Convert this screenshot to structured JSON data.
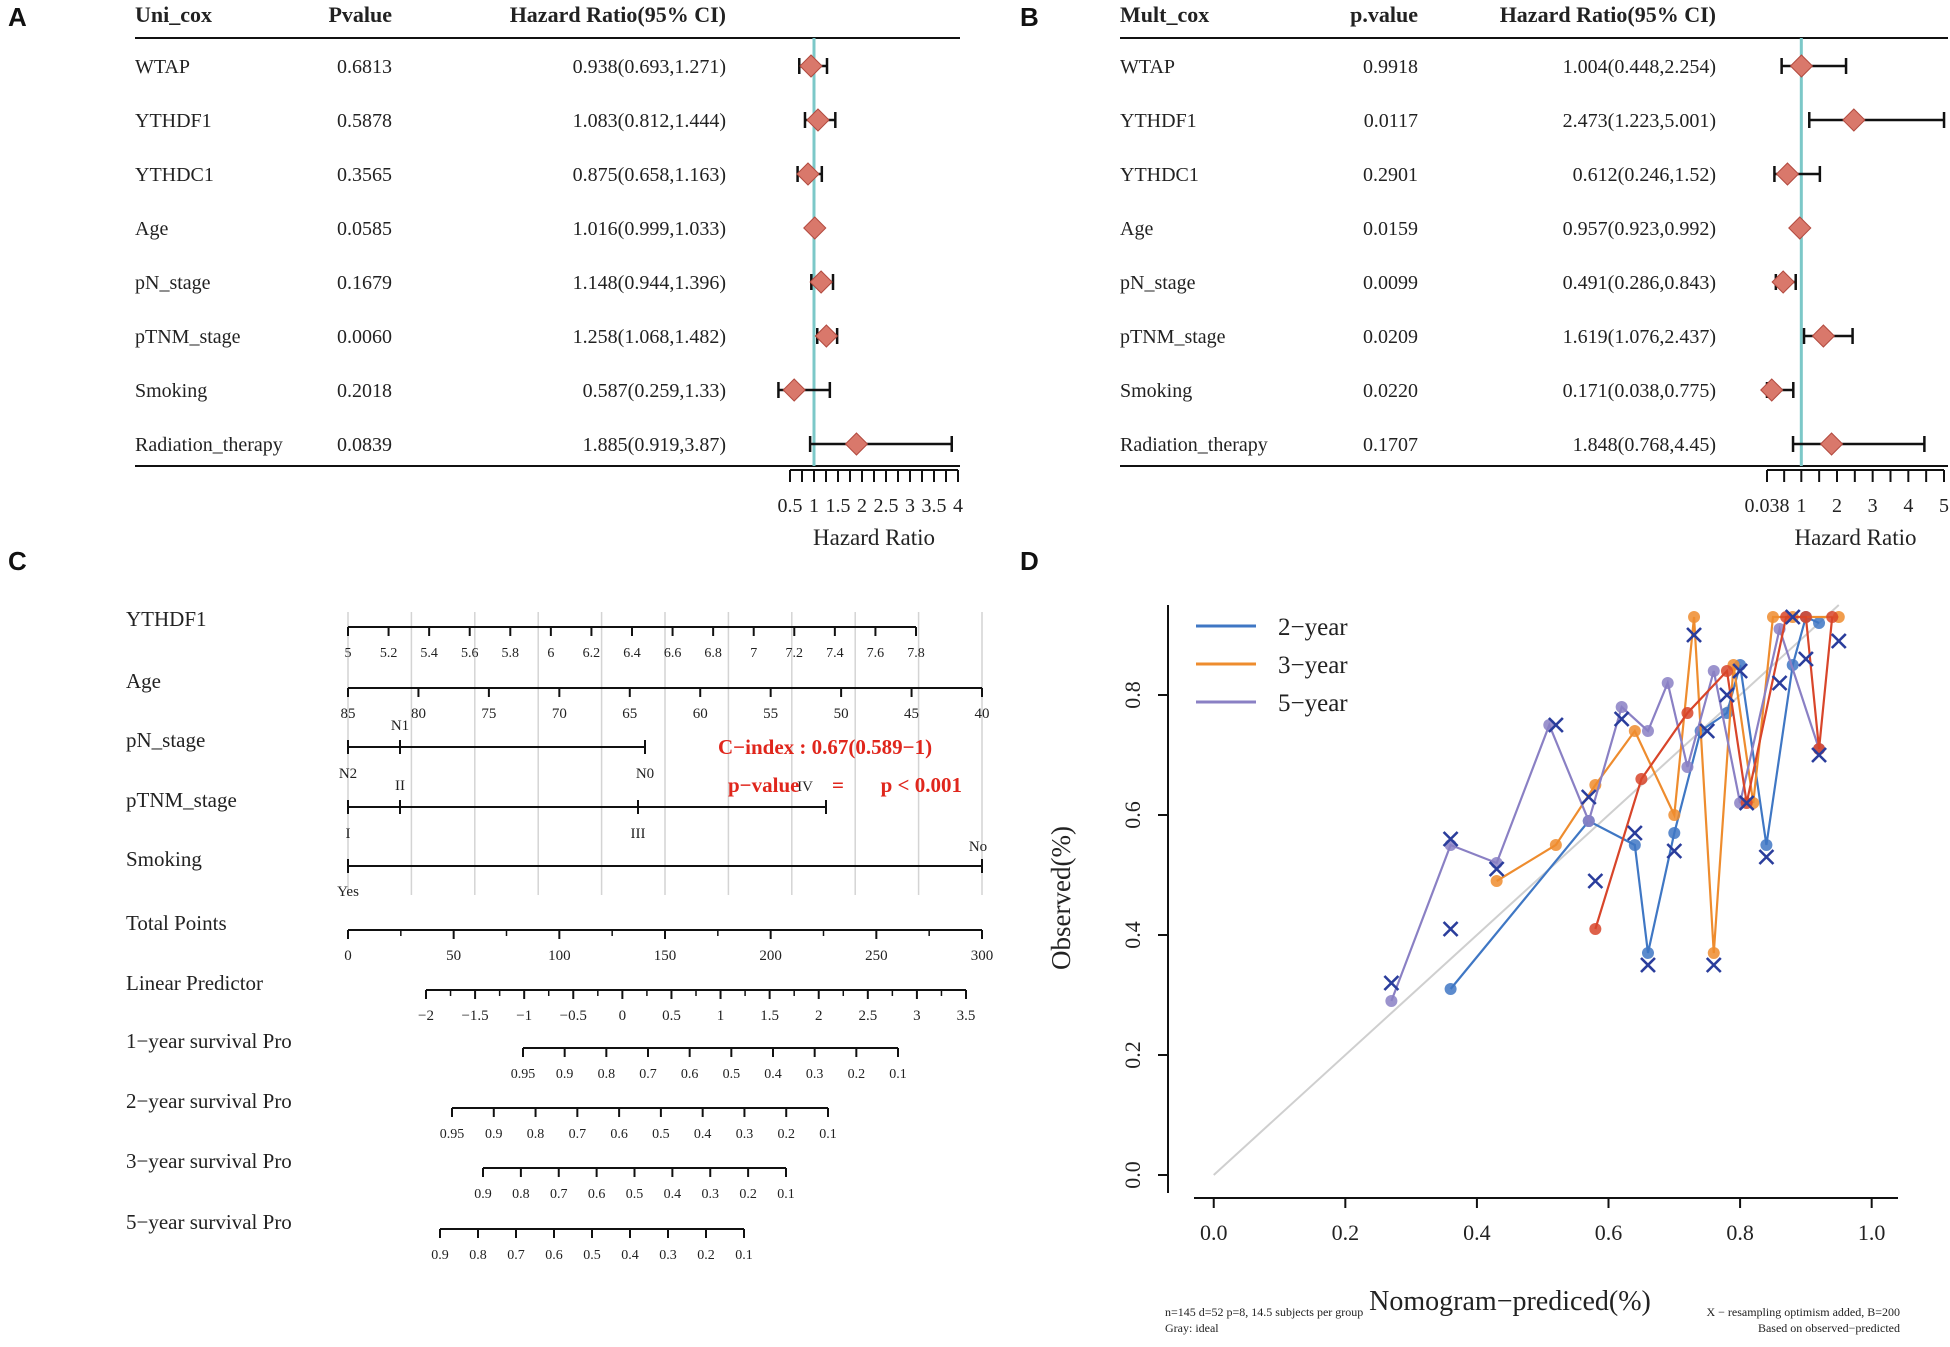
{
  "panels": {
    "A": "A",
    "B": "B",
    "C": "C",
    "D": "D"
  },
  "colors": {
    "refline": "#7cc8c8",
    "diamond": "#d9786b",
    "diamond_stroke": "#b24a3f",
    "cindex": "#e0261c",
    "s2": "#3f77c4",
    "s3": "#ee8c2e",
    "s5": "#8a80c4",
    "cross": "#2a3d9c"
  },
  "forest": [
    {
      "id": "A",
      "headers": {
        "name": "Uni_cox",
        "p": "Pvalue",
        "hr": "Hazard Ratio(95% CI)"
      },
      "rows": [
        {
          "name": "WTAP",
          "p": "0.6813",
          "hr": "0.938(0.693,1.271)",
          "est": 0.938,
          "lo": 0.693,
          "hi": 1.271
        },
        {
          "name": "YTHDF1",
          "p": "0.5878",
          "hr": "1.083(0.812,1.444)",
          "est": 1.083,
          "lo": 0.812,
          "hi": 1.444
        },
        {
          "name": "YTHDC1",
          "p": "0.3565",
          "hr": "0.875(0.658,1.163)",
          "est": 0.875,
          "lo": 0.658,
          "hi": 1.163
        },
        {
          "name": "Age",
          "p": "0.0585",
          "hr": "1.016(0.999,1.033)",
          "est": 1.016,
          "lo": 0.999,
          "hi": 1.033
        },
        {
          "name": "pN_stage",
          "p": "0.1679",
          "hr": "1.148(0.944,1.396)",
          "est": 1.148,
          "lo": 0.944,
          "hi": 1.396
        },
        {
          "name": "pTNM_stage",
          "p": "0.0060",
          "hr": "1.258(1.068,1.482)",
          "est": 1.258,
          "lo": 1.068,
          "hi": 1.482
        },
        {
          "name": "Smoking",
          "p": "0.2018",
          "hr": "0.587(0.259,1.33)",
          "est": 0.587,
          "lo": 0.259,
          "hi": 1.33
        },
        {
          "name": "Radiation_therapy",
          "p": "0.0839",
          "hr": "1.885(0.919,3.87)",
          "est": 1.885,
          "lo": 0.919,
          "hi": 3.87
        }
      ],
      "axis": {
        "ticks": [
          0.5,
          1,
          1.5,
          2,
          2.5,
          3,
          3.5,
          4
        ],
        "tick_labels": [
          "0.5",
          "1",
          "1.5",
          "2",
          "2.5",
          "3",
          "3.5",
          "4"
        ],
        "label": "Hazard Ratio"
      }
    },
    {
      "id": "B",
      "headers": {
        "name": "Mult_cox",
        "p": "p.value",
        "hr": "Hazard Ratio(95% CI)"
      },
      "rows": [
        {
          "name": "WTAP",
          "p": "0.9918",
          "hr": "1.004(0.448,2.254)",
          "est": 1.004,
          "lo": 0.448,
          "hi": 2.254
        },
        {
          "name": "YTHDF1",
          "p": "0.0117",
          "hr": "2.473(1.223,5.001)",
          "est": 2.473,
          "lo": 1.223,
          "hi": 5.001
        },
        {
          "name": "YTHDC1",
          "p": "0.2901",
          "hr": "0.612(0.246,1.52)",
          "est": 0.612,
          "lo": 0.246,
          "hi": 1.52
        },
        {
          "name": "Age",
          "p": "0.0159",
          "hr": "0.957(0.923,0.992)",
          "est": 0.957,
          "lo": 0.923,
          "hi": 0.992
        },
        {
          "name": "pN_stage",
          "p": "0.0099",
          "hr": "0.491(0.286,0.843)",
          "est": 0.491,
          "lo": 0.286,
          "hi": 0.843
        },
        {
          "name": "pTNM_stage",
          "p": "0.0209",
          "hr": "1.619(1.076,2.437)",
          "est": 1.619,
          "lo": 1.076,
          "hi": 2.437
        },
        {
          "name": "Smoking",
          "p": "0.0220",
          "hr": "0.171(0.038,0.775)",
          "est": 0.171,
          "lo": 0.038,
          "hi": 0.775
        },
        {
          "name": "Radiation_therapy",
          "p": "0.1707",
          "hr": "1.848(0.768,4.45)",
          "est": 1.848,
          "lo": 0.768,
          "hi": 4.45
        }
      ],
      "axis": {
        "ticks": [
          0.038,
          1,
          2,
          3,
          4,
          5
        ],
        "tick_labels": [
          "0.038",
          "1",
          "2",
          "3",
          "4",
          "5"
        ],
        "label": "Hazard Ratio"
      }
    }
  ],
  "nomogram": {
    "row_labels": [
      "YTHDF1",
      "Age",
      "pN_stage",
      "pTNM_stage",
      "Smoking",
      "Total Points",
      "Linear Predictor",
      "1−year survival Pro",
      "2−year survival Pro",
      "3−year survival Pro",
      "5−year survival Pro"
    ],
    "ythdf1_ticks": [
      "5",
      "5.2",
      "5.4",
      "5.6",
      "5.8",
      "6",
      "6.2",
      "6.4",
      "6.6",
      "6.8",
      "7",
      "7.2",
      "7.4",
      "7.6",
      "7.8"
    ],
    "age_ticks": [
      "85",
      "80",
      "75",
      "70",
      "65",
      "60",
      "55",
      "50",
      "45",
      "40"
    ],
    "pn_labels": [
      "N2",
      "N1",
      "N0"
    ],
    "ptnm_labels": [
      "I",
      "II",
      "III",
      "IV"
    ],
    "smoking_labels": [
      "Yes",
      "No"
    ],
    "total_ticks": [
      "0",
      "50",
      "100",
      "150",
      "200",
      "250",
      "300"
    ],
    "lp_ticks": [
      "−2",
      "−1.5",
      "−1",
      "−0.5",
      "0",
      "0.5",
      "1",
      "1.5",
      "2",
      "2.5",
      "3",
      "3.5"
    ],
    "surv1_ticks": [
      "0.95",
      "0.9",
      "0.8",
      "0.7",
      "0.6",
      "0.5",
      "0.4",
      "0.3",
      "0.2",
      "0.1"
    ],
    "surv2_ticks": [
      "0.95",
      "0.9",
      "0.8",
      "0.7",
      "0.6",
      "0.5",
      "0.4",
      "0.3",
      "0.2",
      "0.1"
    ],
    "surv3_ticks": [
      "0.9",
      "0.8",
      "0.7",
      "0.6",
      "0.5",
      "0.4",
      "0.3",
      "0.2",
      "0.1"
    ],
    "surv5_ticks": [
      "0.9",
      "0.8",
      "0.7",
      "0.6",
      "0.5",
      "0.4",
      "0.3",
      "0.2",
      "0.1"
    ],
    "cindex": "C−index : 0.67(0.589−1)",
    "pvalue": "p−value",
    "pvalue_eq": "=",
    "pvalue_val": "p < 0.001"
  },
  "chart_data": {
    "type": "line",
    "title": "",
    "xlabel": "Nomogram−prediced(%)",
    "ylabel": "Observed(%)",
    "xlim": [
      -0.03,
      1.04
    ],
    "ylim": [
      -0.03,
      0.95
    ],
    "xticks": [
      "0.0",
      "0.2",
      "0.4",
      "0.6",
      "0.8",
      "1.0"
    ],
    "yticks": [
      "0.0",
      "0.2",
      "0.4",
      "0.6",
      "0.8"
    ],
    "ideal_line_label": "Gray: ideal",
    "legend": [
      "2−year",
      "3−year",
      "5−year"
    ],
    "footnote_left": [
      "n=145 d=52 p=8, 14.5 subjects per group",
      "Gray: ideal"
    ],
    "footnote_right": [
      "X − resampling optimism added, B=200",
      "Based on observed−predicted"
    ],
    "series": [
      {
        "name": "2−year",
        "x": [
          0.36,
          0.57,
          0.64,
          0.66,
          0.7,
          0.74,
          0.78,
          0.8,
          0.84,
          0.88,
          0.9,
          0.92
        ],
        "y": [
          0.31,
          0.59,
          0.55,
          0.37,
          0.57,
          0.74,
          0.77,
          0.85,
          0.55,
          0.85,
          0.93,
          0.92
        ]
      },
      {
        "name": "3−year",
        "x": [
          0.43,
          0.52,
          0.58,
          0.64,
          0.7,
          0.73,
          0.76,
          0.79,
          0.82,
          0.85,
          0.88,
          0.95
        ],
        "y": [
          0.49,
          0.55,
          0.65,
          0.74,
          0.6,
          0.93,
          0.37,
          0.85,
          0.62,
          0.93,
          0.93,
          0.93
        ]
      },
      {
        "name": "5−year",
        "x": [
          0.27,
          0.36,
          0.43,
          0.51,
          0.57,
          0.62,
          0.66,
          0.69,
          0.72,
          0.76,
          0.8,
          0.86,
          0.92
        ],
        "y": [
          0.29,
          0.55,
          0.52,
          0.75,
          0.59,
          0.78,
          0.74,
          0.82,
          0.68,
          0.84,
          0.62,
          0.91,
          0.71
        ]
      },
      {
        "name": "red",
        "x": [
          0.58,
          0.65,
          0.72,
          0.78,
          0.81,
          0.87,
          0.9,
          0.92,
          0.94
        ],
        "y": [
          0.41,
          0.66,
          0.77,
          0.84,
          0.62,
          0.93,
          0.93,
          0.71,
          0.93
        ]
      }
    ],
    "crosses": {
      "x": [
        0.27,
        0.36,
        0.36,
        0.43,
        0.52,
        0.57,
        0.58,
        0.62,
        0.64,
        0.66,
        0.7,
        0.73,
        0.75,
        0.76,
        0.78,
        0.8,
        0.81,
        0.84,
        0.86,
        0.88,
        0.9,
        0.92,
        0.95
      ],
      "y": [
        0.32,
        0.56,
        0.41,
        0.51,
        0.75,
        0.63,
        0.49,
        0.76,
        0.57,
        0.35,
        0.54,
        0.9,
        0.74,
        0.35,
        0.8,
        0.84,
        0.62,
        0.53,
        0.82,
        0.93,
        0.86,
        0.7,
        0.89
      ]
    }
  }
}
